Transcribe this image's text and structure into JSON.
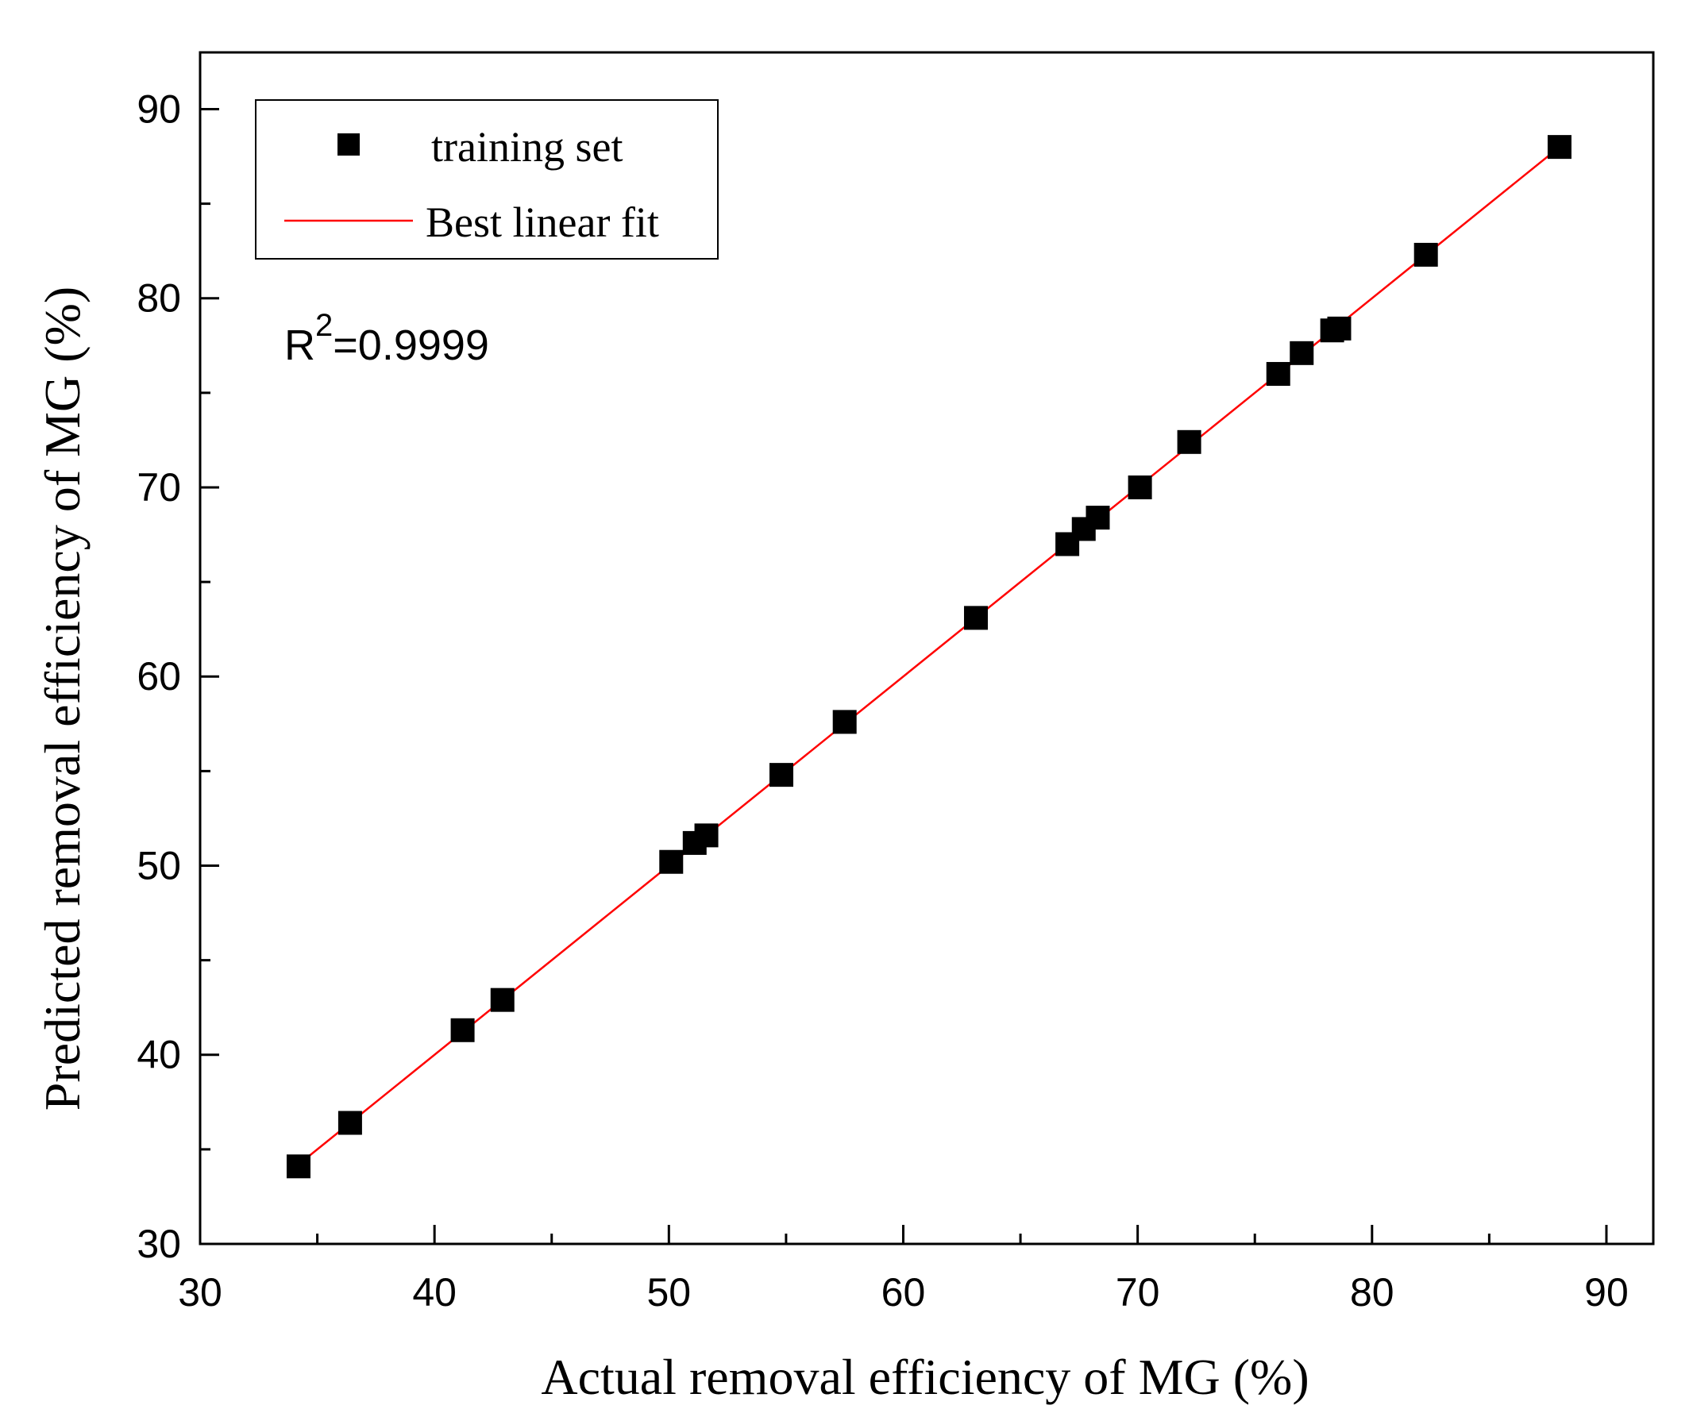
{
  "chart_data": {
    "type": "scatter",
    "title": "",
    "xlabel": "Actual removal efficiency of MG (%)",
    "ylabel": "Predicted removal efficiency of MG (%)",
    "xlim": [
      30,
      92
    ],
    "ylim": [
      30,
      93
    ],
    "x_ticks": [
      30,
      40,
      50,
      60,
      70,
      80,
      90
    ],
    "y_ticks": [
      30,
      40,
      50,
      60,
      70,
      80,
      90
    ],
    "x_minor_ticks": [
      35,
      45,
      55,
      65,
      75,
      85
    ],
    "y_minor_ticks": [
      35,
      45,
      55,
      65,
      75,
      85
    ],
    "series": [
      {
        "name": "training set",
        "kind": "scatter",
        "marker": "square",
        "color": "#000000",
        "points": [
          [
            34.2,
            34.1
          ],
          [
            36.4,
            36.4
          ],
          [
            41.2,
            41.3
          ],
          [
            42.9,
            42.9
          ],
          [
            50.1,
            50.2
          ],
          [
            51.1,
            51.2
          ],
          [
            51.6,
            51.6
          ],
          [
            54.8,
            54.8
          ],
          [
            57.5,
            57.6
          ],
          [
            63.1,
            63.1
          ],
          [
            67.0,
            67.0
          ],
          [
            67.7,
            67.8
          ],
          [
            68.3,
            68.4
          ],
          [
            70.1,
            70.0
          ],
          [
            72.2,
            72.4
          ],
          [
            76.0,
            76.0
          ],
          [
            77.0,
            77.1
          ],
          [
            78.3,
            78.3
          ],
          [
            78.6,
            78.4
          ],
          [
            82.3,
            82.3
          ],
          [
            88.0,
            88.0
          ]
        ]
      },
      {
        "name": "Best linear fit",
        "kind": "line",
        "color": "#ff0000",
        "points": [
          [
            34.2,
            34.2
          ],
          [
            88.0,
            88.0
          ]
        ]
      }
    ],
    "legend": {
      "position": "top-left",
      "entries": [
        "training set",
        "Best linear fit"
      ]
    },
    "annotation": {
      "r2_prefix": "R",
      "r2_exponent": "2",
      "r2_value": "=0.9999"
    }
  }
}
